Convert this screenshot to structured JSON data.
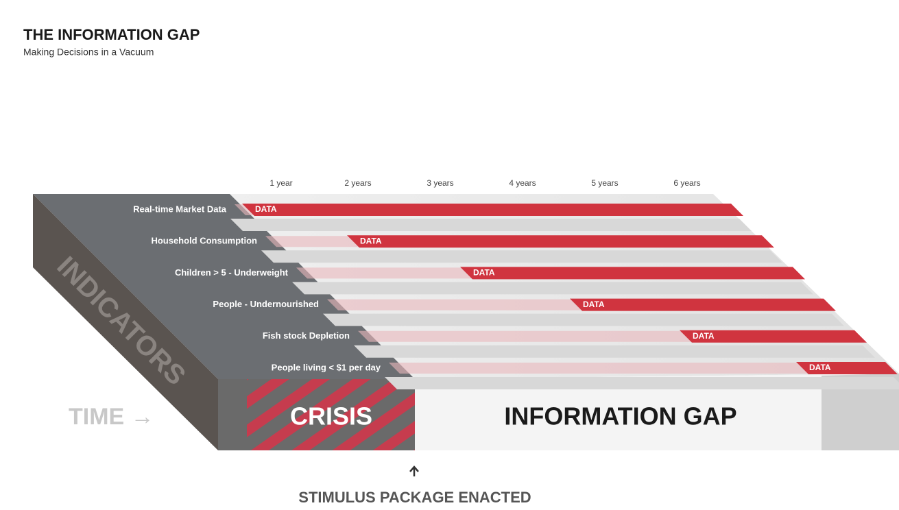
{
  "header": {
    "title": "THE INFORMATION GAP",
    "subtitle": "Making Decisions in a Vacuum"
  },
  "years": [
    "1 year",
    "2 years",
    "3 years",
    "4 years",
    "5 years",
    "6 years"
  ],
  "indicators": [
    {
      "label": "Real-time Market Data",
      "data_label": "DATA"
    },
    {
      "label": "Household  Consumption",
      "data_label": "DATA"
    },
    {
      "label": "Children > 5 - Underweight",
      "data_label": "DATA"
    },
    {
      "label": "People - Undernourished",
      "data_label": "DATA"
    },
    {
      "label": "Fish stock Depletion",
      "data_label": "DATA"
    },
    {
      "label": "People living  < $1 per day",
      "data_label": "DATA"
    }
  ],
  "side_label": "INDICATORS",
  "time_label": "TIME →",
  "crisis_label": "CRISIS",
  "gap_label": "INFORMATION GAP",
  "footer_label": "STIMULUS PACKAGE ENACTED"
}
